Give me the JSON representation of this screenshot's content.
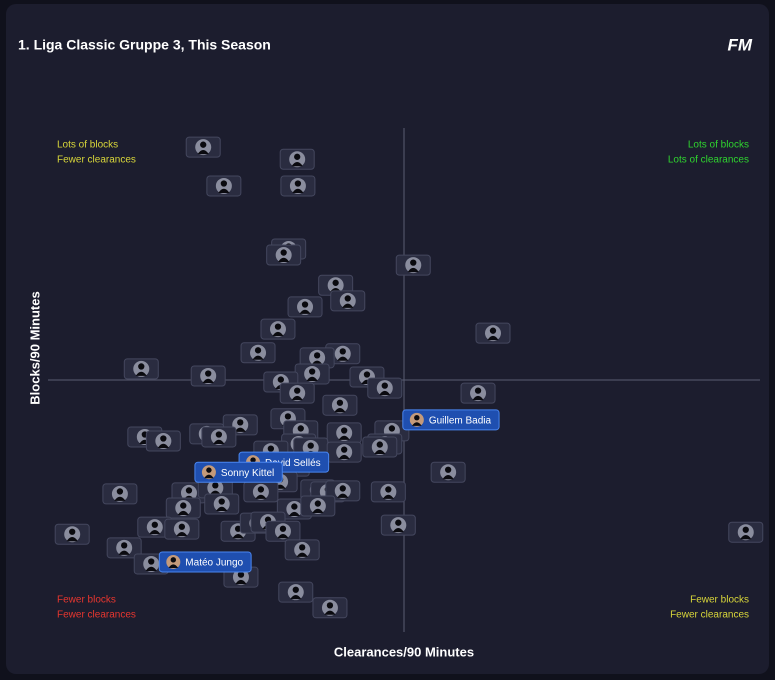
{
  "chart_data": {
    "type": "scatter",
    "title": "1. Liga Classic Gruppe 3, This Season",
    "logo": "FM",
    "x_label": "Clearances/90 Minutes",
    "y_label": "Blocks/90 Minutes",
    "xlim": [
      0,
      100
    ],
    "ylim": [
      0,
      100
    ],
    "reference_lines": {
      "x": 50,
      "y": 50
    },
    "quadrant_labels": [
      {
        "position": "top-left",
        "lines": [
          "Lots of blocks",
          "Fewer clearances"
        ],
        "color": "#d8d63a"
      },
      {
        "position": "top-right",
        "lines": [
          "Lots of blocks",
          "Lots of clearances"
        ],
        "color": "#2fd42f"
      },
      {
        "position": "bottom-left",
        "lines": [
          "Fewer blocks",
          "Fewer clearances"
        ],
        "color": "#e8362f"
      },
      {
        "position": "bottom-right",
        "lines": [
          "Fewer blocks",
          "Fewer clearances"
        ],
        "color": "#d8d63a"
      }
    ],
    "points": {
      "x": [
        21.8,
        35.0,
        24.7,
        35.1,
        33.8,
        33.1,
        51.3,
        40.4,
        42.1,
        36.1,
        62.5,
        32.3,
        29.5,
        41.4,
        37.8,
        13.1,
        37.1,
        22.5,
        44.8,
        32.7,
        47.3,
        35.0,
        60.4,
        41.0,
        33.7,
        27.0,
        48.3,
        13.6,
        16.2,
        22.3,
        24.0,
        35.5,
        41.6,
        47.3,
        46.6,
        35.2,
        36.9,
        31.3,
        41.6,
        56.2,
        34.3,
        32.6,
        10.1,
        19.8,
        23.5,
        29.9,
        37.9,
        39.3,
        41.4,
        47.8,
        24.4,
        19.0,
        34.6,
        37.9,
        49.2,
        3.4,
        15.0,
        18.8,
        26.7,
        29.4,
        30.9,
        33.0,
        98.0,
        10.7,
        35.7,
        14.5,
        27.1,
        34.8,
        39.6
      ],
      "y": [
        96.2,
        93.8,
        88.5,
        88.5,
        76.0,
        74.8,
        72.8,
        68.8,
        65.7,
        64.5,
        59.3,
        60.1,
        55.4,
        55.2,
        54.4,
        52.2,
        51.2,
        50.8,
        50.6,
        49.6,
        48.4,
        47.4,
        47.4,
        45.0,
        42.3,
        41.1,
        39.9,
        38.7,
        37.9,
        39.3,
        38.7,
        39.9,
        39.5,
        37.3,
        36.7,
        37.3,
        36.5,
        35.9,
        35.7,
        31.7,
        32.9,
        29.8,
        27.4,
        27.6,
        28.6,
        27.8,
        28.2,
        27.8,
        28.0,
        27.8,
        25.4,
        24.6,
        24.4,
        25.0,
        21.2,
        19.4,
        20.8,
        20.4,
        20.0,
        21.6,
        21.8,
        20.0,
        19.8,
        16.7,
        16.3,
        13.5,
        10.9,
        7.9,
        4.8
      ],
      "color": "#2a2c40"
    },
    "labeled_points": {
      "labels": [
        "Guillem Badia",
        "David Sellés",
        "Sonny Kittel",
        "Matéo Jungo"
      ],
      "x": [
        51.8,
        28.8,
        22.6,
        17.6
      ],
      "y": [
        42.1,
        33.7,
        31.7,
        13.9
      ],
      "color": "#1f4fb0"
    }
  }
}
